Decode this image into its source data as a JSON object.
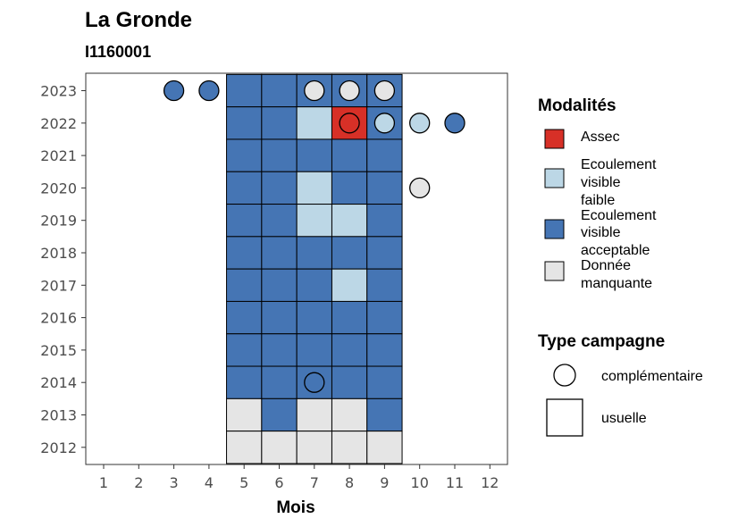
{
  "chart_data": {
    "type": "heatmap",
    "title": "La Gronde",
    "subtitle": "I1160001",
    "xlabel": "Mois",
    "ylabel": "",
    "x_ticks": [
      "1",
      "2",
      "3",
      "4",
      "5",
      "6",
      "7",
      "8",
      "9",
      "10",
      "11",
      "12"
    ],
    "y_ticks": [
      "2012",
      "2013",
      "2014",
      "2015",
      "2016",
      "2017",
      "2018",
      "2019",
      "2020",
      "2021",
      "2022",
      "2023"
    ],
    "colors": {
      "Assec": "#d73027",
      "Ecoulement visible faible": "#bcd7e6",
      "Ecoulement visible acceptable": "#4575b4",
      "Donnée manquante": "#e5e5e5"
    },
    "usuelle": [
      {
        "year": 2023,
        "months": {
          "5": "Ecoulement visible acceptable",
          "6": "Ecoulement visible acceptable",
          "7": "Ecoulement visible acceptable",
          "8": "Ecoulement visible acceptable",
          "9": "Ecoulement visible acceptable"
        }
      },
      {
        "year": 2022,
        "months": {
          "5": "Ecoulement visible acceptable",
          "6": "Ecoulement visible acceptable",
          "7": "Ecoulement visible faible",
          "8": "Assec",
          "9": "Ecoulement visible acceptable"
        }
      },
      {
        "year": 2021,
        "months": {
          "5": "Ecoulement visible acceptable",
          "6": "Ecoulement visible acceptable",
          "7": "Ecoulement visible acceptable",
          "8": "Ecoulement visible acceptable",
          "9": "Ecoulement visible acceptable"
        }
      },
      {
        "year": 2020,
        "months": {
          "5": "Ecoulement visible acceptable",
          "6": "Ecoulement visible acceptable",
          "7": "Ecoulement visible faible",
          "8": "Ecoulement visible acceptable",
          "9": "Ecoulement visible acceptable"
        }
      },
      {
        "year": 2019,
        "months": {
          "5": "Ecoulement visible acceptable",
          "6": "Ecoulement visible acceptable",
          "7": "Ecoulement visible faible",
          "8": "Ecoulement visible faible",
          "9": "Ecoulement visible acceptable"
        }
      },
      {
        "year": 2018,
        "months": {
          "5": "Ecoulement visible acceptable",
          "6": "Ecoulement visible acceptable",
          "7": "Ecoulement visible acceptable",
          "8": "Ecoulement visible acceptable",
          "9": "Ecoulement visible acceptable"
        }
      },
      {
        "year": 2017,
        "months": {
          "5": "Ecoulement visible acceptable",
          "6": "Ecoulement visible acceptable",
          "7": "Ecoulement visible acceptable",
          "8": "Ecoulement visible faible",
          "9": "Ecoulement visible acceptable"
        }
      },
      {
        "year": 2016,
        "months": {
          "5": "Ecoulement visible acceptable",
          "6": "Ecoulement visible acceptable",
          "7": "Ecoulement visible acceptable",
          "8": "Ecoulement visible acceptable",
          "9": "Ecoulement visible acceptable"
        }
      },
      {
        "year": 2015,
        "months": {
          "5": "Ecoulement visible acceptable",
          "6": "Ecoulement visible acceptable",
          "7": "Ecoulement visible acceptable",
          "8": "Ecoulement visible acceptable",
          "9": "Ecoulement visible acceptable"
        }
      },
      {
        "year": 2014,
        "months": {
          "5": "Ecoulement visible acceptable",
          "6": "Ecoulement visible acceptable",
          "7": "Ecoulement visible acceptable",
          "8": "Ecoulement visible acceptable",
          "9": "Ecoulement visible acceptable"
        }
      },
      {
        "year": 2013,
        "months": {
          "5": "Donnée manquante",
          "6": "Ecoulement visible acceptable",
          "7": "Donnée manquante",
          "8": "Donnée manquante",
          "9": "Ecoulement visible acceptable"
        }
      },
      {
        "year": 2012,
        "months": {
          "5": "Donnée manquante",
          "6": "Donnée manquante",
          "7": "Donnée manquante",
          "8": "Donnée manquante",
          "9": "Donnée manquante"
        }
      }
    ],
    "complementaire": [
      {
        "year": 2023,
        "month": 3,
        "value": "Ecoulement visible acceptable"
      },
      {
        "year": 2023,
        "month": 4,
        "value": "Ecoulement visible acceptable"
      },
      {
        "year": 2023,
        "month": 7,
        "value": "Donnée manquante"
      },
      {
        "year": 2023,
        "month": 8,
        "value": "Donnée manquante"
      },
      {
        "year": 2023,
        "month": 9,
        "value": "Donnée manquante"
      },
      {
        "year": 2022,
        "month": 8,
        "value": "Assec"
      },
      {
        "year": 2022,
        "month": 9,
        "value": "Ecoulement visible faible"
      },
      {
        "year": 2022,
        "month": 10,
        "value": "Ecoulement visible faible"
      },
      {
        "year": 2022,
        "month": 11,
        "value": "Ecoulement visible acceptable"
      },
      {
        "year": 2020,
        "month": 10,
        "value": "Donnée manquante"
      },
      {
        "year": 2014,
        "month": 7,
        "value": "Ecoulement visible acceptable"
      }
    ],
    "legend": {
      "position": "right",
      "modalites_title": "Modalités",
      "modalites": [
        {
          "key": "Assec",
          "lines": [
            "Assec"
          ]
        },
        {
          "key": "Ecoulement visible faible",
          "lines": [
            "Ecoulement",
            "visible",
            "faible"
          ]
        },
        {
          "key": "Ecoulement visible acceptable",
          "lines": [
            "Ecoulement",
            "visible",
            "acceptable"
          ]
        },
        {
          "key": "Donnée manquante",
          "lines": [
            "Donnée",
            "manquante"
          ]
        }
      ],
      "campagne_title": "Type campagne",
      "campagne": [
        {
          "shape": "circle",
          "label": "complémentaire"
        },
        {
          "shape": "square",
          "label": "usuelle"
        }
      ]
    },
    "grid": false
  }
}
